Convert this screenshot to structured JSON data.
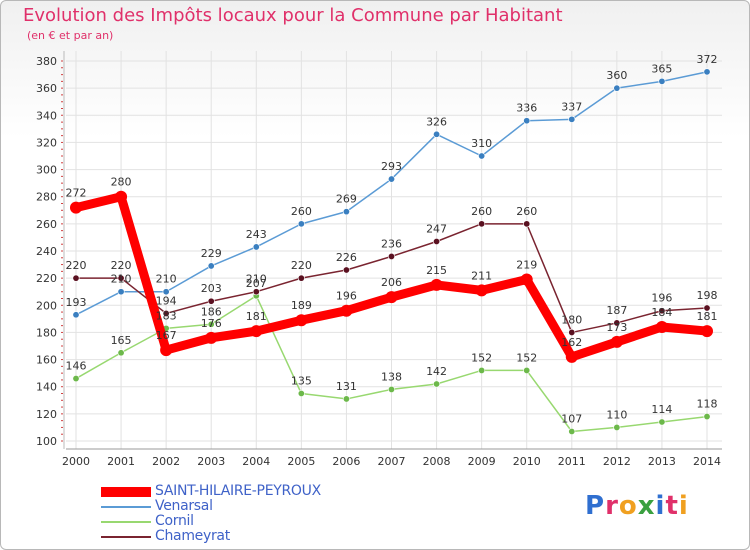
{
  "title": "Evolution des Impôts locaux pour la Commune par Habitant",
  "subtitle": "(en € et par an)",
  "logo": {
    "letters": [
      "P",
      "r",
      "o",
      "x",
      "i",
      "t",
      "i"
    ],
    "colors": [
      "#2f6fd0",
      "#e0306a",
      "#f0a020",
      "#3aa040",
      "#2f6fd0",
      "#e0306a",
      "#f0a020"
    ]
  },
  "chart_data": {
    "type": "line",
    "title": "Evolution des Impôts locaux pour la Commune par Habitant",
    "subtitle": "(en € et par an)",
    "xlabel": "",
    "ylabel": "",
    "x": [
      "2000",
      "2001",
      "2002",
      "2003",
      "2004",
      "2005",
      "2006",
      "2007",
      "2008",
      "2009",
      "2010",
      "2011",
      "2012",
      "2013",
      "2014"
    ],
    "ylim": [
      100,
      380
    ],
    "yticks": [
      100,
      120,
      140,
      160,
      180,
      200,
      220,
      240,
      260,
      280,
      300,
      320,
      340,
      360,
      380
    ],
    "grid": true,
    "legend_position": "bottom-left",
    "series": [
      {
        "name": "Venarsal",
        "color": "#5b9bd5",
        "marker": "#3a7fc0",
        "values": [
          193,
          210,
          210,
          229,
          243,
          260,
          269,
          293,
          326,
          310,
          336,
          337,
          360,
          365,
          372
        ]
      },
      {
        "name": "Cornil",
        "color": "#98d870",
        "marker": "#6cb84a",
        "values": [
          146,
          165,
          183,
          186,
          207,
          135,
          131,
          138,
          142,
          152,
          152,
          107,
          110,
          114,
          118
        ]
      },
      {
        "name": "Chameyrat",
        "color": "#7a2430",
        "marker": "#5a1020",
        "values": [
          220,
          220,
          194,
          203,
          210,
          220,
          226,
          236,
          247,
          260,
          260,
          180,
          187,
          196,
          198
        ]
      },
      {
        "name": "SAINT-HILAIRE-PEYROUX",
        "color": "#ff0000",
        "marker": "#ff0000",
        "bold": true,
        "values": [
          272,
          280,
          167,
          176,
          181,
          189,
          196,
          206,
          215,
          211,
          219,
          162,
          173,
          184,
          181
        ]
      }
    ],
    "legend": [
      "SAINT-HILAIRE-PEYROUX",
      "Venarsal",
      "Cornil",
      "Chameyrat"
    ]
  }
}
